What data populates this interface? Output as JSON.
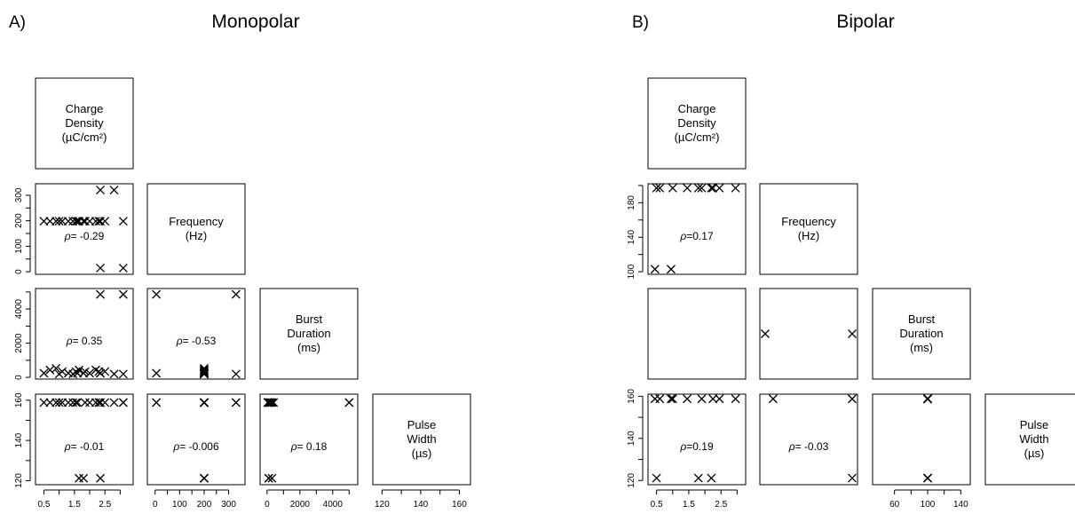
{
  "chart_data": [
    {
      "type": "scatter",
      "panel_label": "A)",
      "title": "Monopolar",
      "variables": [
        {
          "lines": [
            "Charge",
            "Density",
            "(µC/cm²)"
          ]
        },
        {
          "lines": [
            "Frequency",
            "(Hz)"
          ]
        },
        {
          "lines": [
            "Burst",
            "Duration",
            "(ms)"
          ]
        },
        {
          "lines": [
            "Pulse",
            "Width",
            "(µs)"
          ]
        }
      ],
      "axes": {
        "x": [
          {
            "range": [
              0.4,
              3.25
            ],
            "ticks": [
              0.5,
              1.0,
              1.5,
              2.0,
              2.5,
              3.0
            ],
            "labels": [
              "0.5",
              "",
              "1.5",
              "",
              "2.5",
              ""
            ]
          },
          {
            "range": [
              -10,
              345
            ],
            "ticks": [
              0,
              50,
              100,
              150,
              200,
              250,
              300
            ],
            "labels": [
              "0",
              "",
              "100",
              "",
              "200",
              "",
              "300"
            ]
          },
          {
            "range": [
              -100,
              5200
            ],
            "ticks": [
              0,
              1000,
              2000,
              3000,
              4000,
              5000
            ],
            "labels": [
              "0",
              "",
              "2000",
              "",
              "4000",
              ""
            ]
          },
          {
            "range": [
              118,
              163
            ],
            "ticks": [
              120,
              130,
              140,
              150,
              160
            ],
            "labels": [
              "120",
              "",
              "140",
              "",
              "160"
            ]
          }
        ],
        "y": [
          null,
          {
            "range": [
              -10,
              345
            ],
            "ticks": [
              0,
              50,
              100,
              150,
              200,
              250,
              300
            ],
            "labels": [
              "0",
              "",
              "100",
              "",
              "200",
              "",
              "300"
            ]
          },
          {
            "range": [
              -100,
              5200
            ],
            "ticks": [
              0,
              1000,
              2000,
              3000,
              4000,
              5000
            ],
            "labels": [
              "0",
              "",
              "2000",
              "",
              "4000",
              ""
            ]
          },
          {
            "range": [
              118,
              163
            ],
            "ticks": [
              120,
              130,
              140,
              150,
              160
            ],
            "labels": [
              "120",
              "",
              "140",
              "",
              "160"
            ]
          }
        ]
      },
      "observations": [
        {
          "cd": 0.5,
          "f": 200,
          "bd": 100,
          "pw": 160
        },
        {
          "cd": 0.7,
          "f": 200,
          "bd": 300,
          "pw": 160
        },
        {
          "cd": 0.9,
          "f": 200,
          "bd": 400,
          "pw": 160
        },
        {
          "cd": 1.0,
          "f": 200,
          "bd": 50,
          "pw": 160
        },
        {
          "cd": 1.1,
          "f": 200,
          "bd": 200,
          "pw": 160
        },
        {
          "cd": 1.3,
          "f": 200,
          "bd": 100,
          "pw": 160
        },
        {
          "cd": 1.45,
          "f": 200,
          "bd": 50,
          "pw": 160
        },
        {
          "cd": 1.55,
          "f": 200,
          "bd": 200,
          "pw": 160
        },
        {
          "cd": 1.6,
          "f": 200,
          "bd": 100,
          "pw": 160
        },
        {
          "cd": 1.65,
          "f": 200,
          "bd": 300,
          "pw": 120
        },
        {
          "cd": 1.8,
          "f": 200,
          "bd": 100,
          "pw": 120
        },
        {
          "cd": 1.85,
          "f": 200,
          "bd": 200,
          "pw": 160
        },
        {
          "cd": 2.0,
          "f": 200,
          "bd": 100,
          "pw": 160
        },
        {
          "cd": 2.2,
          "f": 200,
          "bd": 300,
          "pw": 160
        },
        {
          "cd": 2.3,
          "f": 200,
          "bd": 200,
          "pw": 160
        },
        {
          "cd": 2.35,
          "f": 200,
          "bd": 100,
          "pw": 120
        },
        {
          "cd": 2.5,
          "f": 200,
          "bd": 200,
          "pw": 160
        },
        {
          "cd": 2.35,
          "f": 330,
          "bd": 5000,
          "pw": 160
        },
        {
          "cd": 2.8,
          "f": 330,
          "bd": 50,
          "pw": 160
        },
        {
          "cd": 2.35,
          "f": 5,
          "bd": 100,
          "pw": 160
        },
        {
          "cd": 3.1,
          "f": 5,
          "bd": 5000,
          "pw": 160
        },
        {
          "cd": 3.1,
          "f": 200,
          "bd": 50,
          "pw": 160
        }
      ],
      "correlations": [
        {
          "row": 1,
          "col": 0,
          "text": "= -0.29"
        },
        {
          "row": 2,
          "col": 0,
          "text": "= 0.35"
        },
        {
          "row": 2,
          "col": 1,
          "text": "= -0.53"
        },
        {
          "row": 3,
          "col": 0,
          "text": "= -0.01"
        },
        {
          "row": 3,
          "col": 1,
          "text": "= -0.006"
        },
        {
          "row": 3,
          "col": 2,
          "text": "= 0.18"
        }
      ]
    },
    {
      "type": "scatter",
      "panel_label": "B)",
      "title": "Bipolar",
      "variables": [
        {
          "lines": [
            "Charge",
            "Density",
            "(µC/cm²)"
          ]
        },
        {
          "lines": [
            "Frequency",
            "(Hz)"
          ]
        },
        {
          "lines": [
            "Burst",
            "Duration",
            "(ms)"
          ]
        },
        {
          "lines": [
            "Pulse",
            "Width",
            "(µs)"
          ]
        }
      ],
      "axes": {
        "x": [
          {
            "range": [
              0.4,
              3.1
            ],
            "ticks": [
              0.5,
              1.0,
              1.5,
              2.0,
              2.5,
              3.0
            ],
            "labels": [
              "0.5",
              "",
              "1.5",
              "",
              "2.5",
              ""
            ]
          },
          null,
          {
            "range": [
              40,
              145
            ],
            "ticks": [
              60,
              80,
              100,
              120,
              140
            ],
            "labels": [
              "60",
              "",
              "100",
              "",
              "140"
            ]
          },
          null
        ],
        "y": [
          null,
          {
            "range": [
              97,
              202
            ],
            "ticks": [
              100,
              120,
              140,
              160,
              180,
              200
            ],
            "labels": [
              "100",
              "",
              "140",
              "",
              "180",
              ""
            ]
          },
          null,
          {
            "range": [
              118,
              161
            ],
            "ticks": [
              120,
              130,
              140,
              150,
              160
            ],
            "labels": [
              "120",
              "",
              "140",
              "",
              "160"
            ]
          }
        ]
      },
      "observations": [
        {
          "cd": 0.45,
          "f": 100,
          "bd": 100,
          "pw": 160
        },
        {
          "cd": 0.5,
          "f": 200,
          "bd": 100,
          "pw": 120
        },
        {
          "cd": 0.6,
          "f": 200,
          "bd": 100,
          "pw": 160
        },
        {
          "cd": 0.95,
          "f": 100,
          "bd": 100,
          "pw": 160
        },
        {
          "cd": 1.0,
          "f": 200,
          "bd": 100,
          "pw": 160
        },
        {
          "cd": 1.45,
          "f": 200,
          "bd": 100,
          "pw": 160
        },
        {
          "cd": 1.8,
          "f": 200,
          "bd": 100,
          "pw": 120
        },
        {
          "cd": 1.9,
          "f": 200,
          "bd": 100,
          "pw": 160
        },
        {
          "cd": 2.2,
          "f": 200,
          "bd": 100,
          "pw": 120
        },
        {
          "cd": 2.25,
          "f": 200,
          "bd": 100,
          "pw": 160
        },
        {
          "cd": 2.45,
          "f": 200,
          "bd": 100,
          "pw": 160
        },
        {
          "cd": 2.95,
          "f": 200,
          "bd": 100,
          "pw": 160
        }
      ],
      "pair_points": [
        {
          "row": 2,
          "col": 1,
          "points": [
            [
              -2,
              0
            ],
            [
              20,
              0
            ]
          ]
        },
        {
          "row": 3,
          "col": 1,
          "points": [
            [
              0,
              160
            ],
            [
              20,
              160
            ],
            [
              20,
              120
            ]
          ]
        },
        {
          "row": 3,
          "col": 2,
          "points": [
            [
              100,
              160
            ],
            [
              100,
              120
            ]
          ]
        }
      ],
      "correlations": [
        {
          "row": 1,
          "col": 0,
          "text": "=0.17"
        },
        {
          "row": 3,
          "col": 0,
          "text": "=0.19"
        },
        {
          "row": 3,
          "col": 1,
          "text": "= -0.03"
        }
      ]
    }
  ]
}
